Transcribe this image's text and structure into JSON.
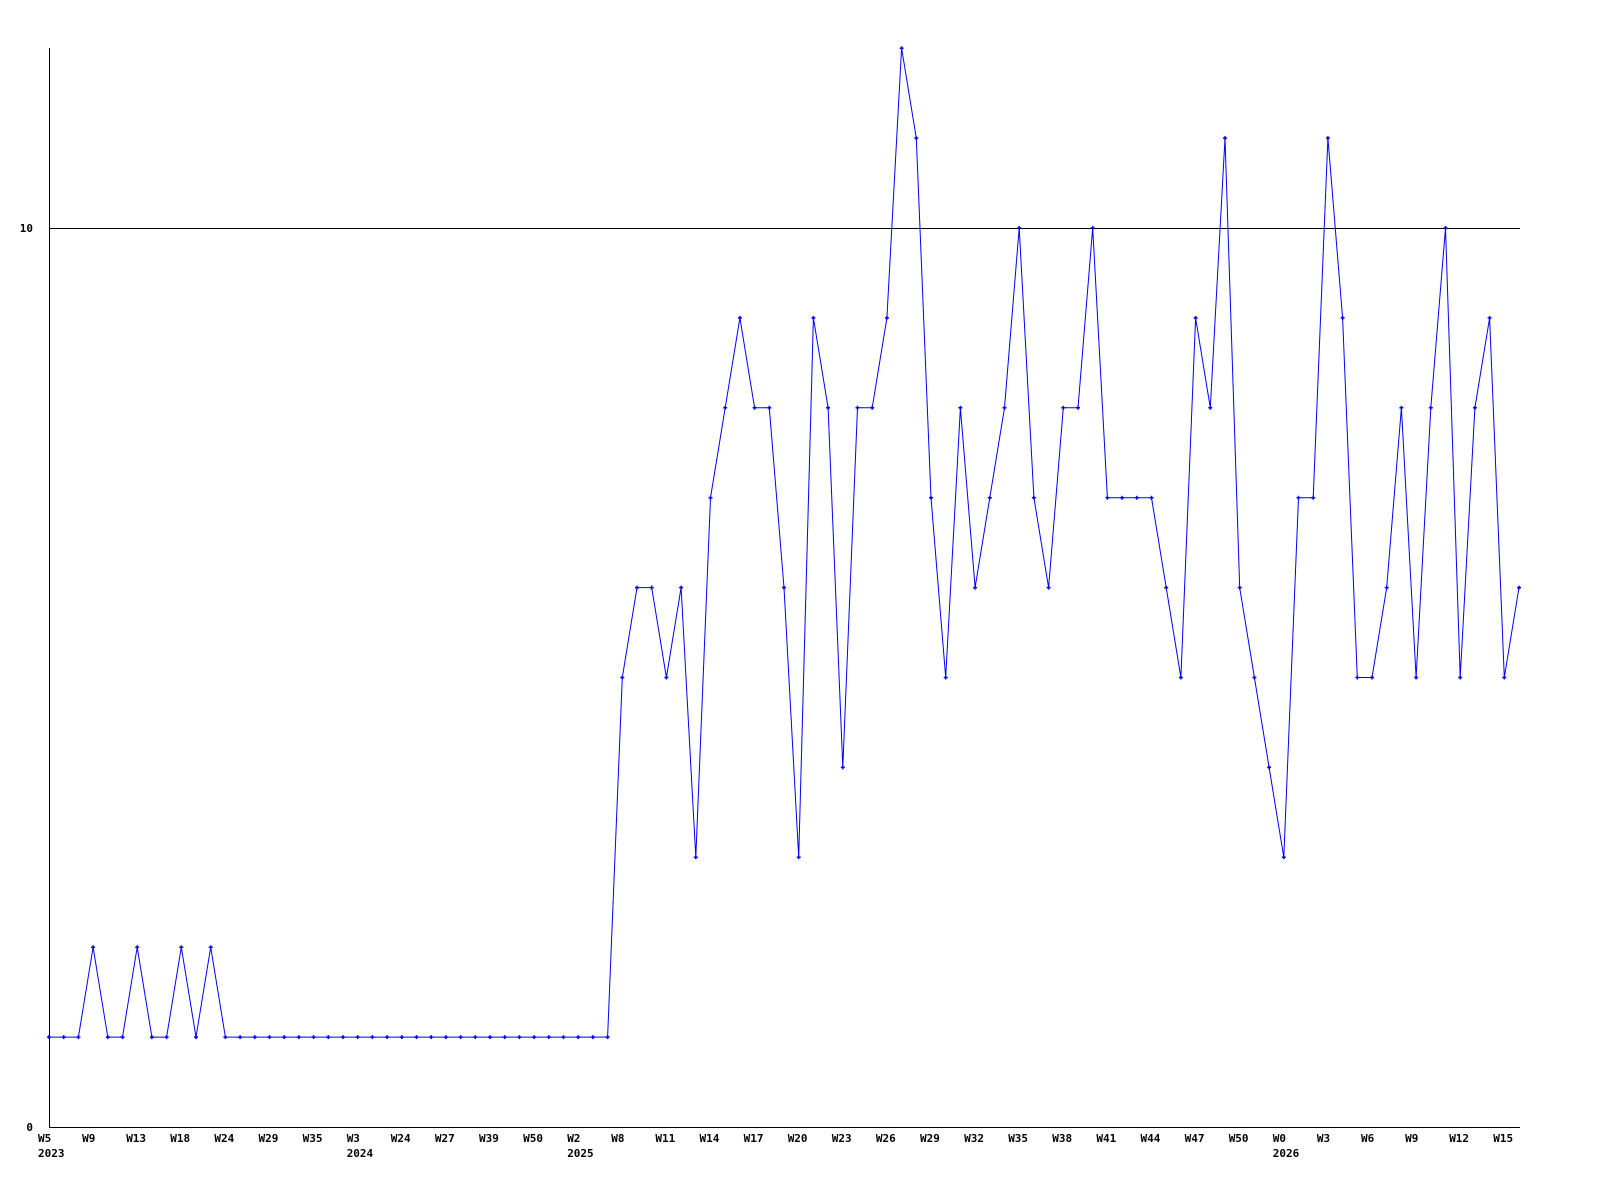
{
  "chart_data": {
    "type": "line",
    "title": "",
    "xlabel": "",
    "ylabel": "",
    "ylim": [
      0,
      12
    ],
    "y_ticks": [
      {
        "value": 0,
        "label": "0"
      },
      {
        "value": 10,
        "label": "10"
      }
    ],
    "reference_line": 10,
    "grid": false,
    "line_color": "#0000ff",
    "axis_color": "#000000",
    "x_ticks": [
      {
        "index": 0,
        "label": "W5",
        "year": "2023"
      },
      {
        "index": 3,
        "label": "W9"
      },
      {
        "index": 6,
        "label": "W13"
      },
      {
        "index": 9,
        "label": "W18"
      },
      {
        "index": 12,
        "label": "W24"
      },
      {
        "index": 15,
        "label": "W29"
      },
      {
        "index": 18,
        "label": "W35"
      },
      {
        "index": 21,
        "label": "W3",
        "year": "2024"
      },
      {
        "index": 24,
        "label": "W24"
      },
      {
        "index": 27,
        "label": "W27"
      },
      {
        "index": 30,
        "label": "W39"
      },
      {
        "index": 33,
        "label": "W50"
      },
      {
        "index": 36,
        "label": "W2",
        "year": "2025"
      },
      {
        "index": 39,
        "label": "W8"
      },
      {
        "index": 42,
        "label": "W11"
      },
      {
        "index": 45,
        "label": "W14"
      },
      {
        "index": 48,
        "label": "W17"
      },
      {
        "index": 51,
        "label": "W20"
      },
      {
        "index": 54,
        "label": "W23"
      },
      {
        "index": 57,
        "label": "W26"
      },
      {
        "index": 60,
        "label": "W29"
      },
      {
        "index": 63,
        "label": "W32"
      },
      {
        "index": 66,
        "label": "W35"
      },
      {
        "index": 69,
        "label": "W38"
      },
      {
        "index": 72,
        "label": "W41"
      },
      {
        "index": 75,
        "label": "W44"
      },
      {
        "index": 78,
        "label": "W47"
      },
      {
        "index": 81,
        "label": "W50"
      },
      {
        "index": 84,
        "label": "W0",
        "year": "2026"
      },
      {
        "index": 87,
        "label": "W3"
      },
      {
        "index": 90,
        "label": "W6"
      },
      {
        "index": 93,
        "label": "W9"
      },
      {
        "index": 96,
        "label": "W12"
      },
      {
        "index": 99,
        "label": "W15"
      }
    ],
    "series": [
      {
        "values": [
          1,
          1,
          1,
          2,
          1,
          1,
          2,
          1,
          1,
          2,
          1,
          2,
          1,
          1,
          1,
          1,
          1,
          1,
          1,
          1,
          1,
          1,
          1,
          1,
          1,
          1,
          1,
          1,
          1,
          1,
          1,
          1,
          1,
          1,
          1,
          1,
          1,
          1,
          1,
          5,
          6,
          6,
          5,
          6,
          3,
          7,
          8,
          9,
          8,
          8,
          6,
          3,
          9,
          8,
          4,
          8,
          8,
          9,
          12,
          11,
          7,
          5,
          8,
          6,
          7,
          8,
          10,
          7,
          6,
          8,
          8,
          10,
          7,
          7,
          7,
          7,
          6,
          5,
          9,
          8,
          11,
          6,
          5,
          4,
          3,
          7,
          7,
          11,
          9,
          5,
          5,
          6,
          8,
          5,
          8,
          10,
          5,
          8,
          9,
          5,
          6
        ]
      }
    ]
  }
}
